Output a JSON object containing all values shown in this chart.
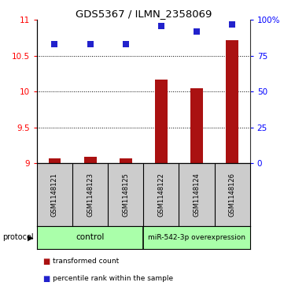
{
  "title": "GDS5367 / ILMN_2358069",
  "samples": [
    "GSM1148121",
    "GSM1148123",
    "GSM1148125",
    "GSM1148122",
    "GSM1148124",
    "GSM1148126"
  ],
  "transformed_count": [
    9.07,
    9.09,
    9.07,
    10.17,
    10.05,
    10.72
  ],
  "percentile_rank": [
    83,
    83,
    83,
    96,
    92,
    97
  ],
  "ylim_left": [
    9,
    11
  ],
  "ylim_right": [
    0,
    100
  ],
  "yticks_left": [
    9,
    9.5,
    10,
    10.5,
    11
  ],
  "yticks_right": [
    0,
    25,
    50,
    75,
    100
  ],
  "ytick_right_labels": [
    "0",
    "25",
    "50",
    "75",
    "100%"
  ],
  "bar_color": "#aa1111",
  "dot_color": "#2222cc",
  "group1_label": "control",
  "group2_label": "miR-542-3p overexpression",
  "group1_indices": [
    0,
    1,
    2
  ],
  "group2_indices": [
    3,
    4,
    5
  ],
  "group_bg_color": "#aaffaa",
  "sample_bg_color": "#cccccc",
  "legend_bar_label": "transformed count",
  "legend_dot_label": "percentile rank within the sample",
  "protocol_label": "protocol",
  "bar_width": 0.35,
  "dot_size": 28
}
